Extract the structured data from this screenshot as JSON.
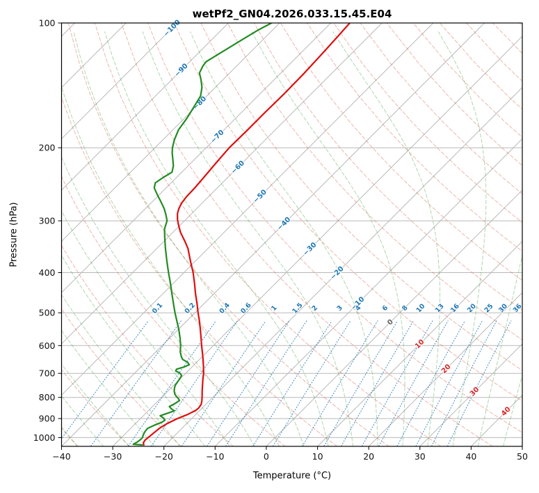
{
  "title": "wetPf2_GN04.2026.033.15.45.E04",
  "chart_data": {
    "type": "skewt-logp-line",
    "title": "wetPf2_GN04.2026.033.15.45.E04",
    "xlabel": "Temperature (°C)",
    "ylabel": "Pressure (hPa)",
    "xlim": [
      -40,
      50
    ],
    "x_ticks": [
      -40,
      -30,
      -20,
      -10,
      0,
      10,
      20,
      30,
      40,
      50
    ],
    "plim": [
      100,
      1050
    ],
    "p_ticks": [
      100,
      200,
      300,
      400,
      500,
      600,
      700,
      800,
      900,
      1000
    ],
    "skew_deg": 45,
    "grid": "on",
    "isotherms": {
      "start": -130,
      "end": 50,
      "step": 10
    },
    "isotherm_labels": [
      {
        "t": -100,
        "p": 103
      },
      {
        "t": -90,
        "p": 130
      },
      {
        "t": -80,
        "p": 156
      },
      {
        "t": -70,
        "p": 188
      },
      {
        "t": -60,
        "p": 223
      },
      {
        "t": -50,
        "p": 262
      },
      {
        "t": -40,
        "p": 305
      },
      {
        "t": -30,
        "p": 351
      },
      {
        "t": -20,
        "p": 401
      },
      {
        "t": -10,
        "p": 475
      },
      {
        "t": 0,
        "p": 527
      },
      {
        "t": 10,
        "p": 595
      },
      {
        "t": 20,
        "p": 683
      },
      {
        "t": 30,
        "p": 775
      },
      {
        "t": 40,
        "p": 865
      }
    ],
    "dry_adiabats_K": {
      "start": 233,
      "end": 473,
      "step": 10
    },
    "moist_adiabats_C": {
      "start": -40,
      "end": 45,
      "step": 5
    },
    "mixing_ratios_g_kg": [
      0.1,
      0.2,
      0.4,
      0.6,
      1,
      1.5,
      2,
      3,
      4,
      6,
      8,
      10,
      13,
      16,
      20,
      25,
      30,
      36
    ],
    "mixing_label_p": 488,
    "colors": {
      "temperature": "#dd0e0e",
      "dewpoint": "#228b22",
      "grid": "#b8b8b8",
      "frame": "#000000",
      "dry_adiabat": "rgba(210,80,58,0.42)",
      "moist_adiabat": "rgba(44,150,44,0.38)",
      "mixing_line": "rgba(31,119,180,0.8)",
      "mixing_label": "#1f77b4",
      "isotherm_label_neg": "#1f77b4",
      "isotherm_label_zero": "#666666",
      "isotherm_label_pos": "#d62728",
      "tick_text": "#111111"
    },
    "series": [
      {
        "name": "temperature",
        "points": [
          [
            1042,
            -24.2
          ],
          [
            1030,
            -24.7
          ],
          [
            1015,
            -24.9
          ],
          [
            1000,
            -24.8
          ],
          [
            975,
            -24.6
          ],
          [
            950,
            -24.4
          ],
          [
            925,
            -23.8
          ],
          [
            900,
            -22.8
          ],
          [
            880,
            -21.6
          ],
          [
            860,
            -20.8
          ],
          [
            848,
            -20.7
          ],
          [
            832,
            -20.9
          ],
          [
            815,
            -21.5
          ],
          [
            800,
            -22.1
          ],
          [
            775,
            -23.2
          ],
          [
            750,
            -24.3
          ],
          [
            725,
            -25.4
          ],
          [
            700,
            -26.5
          ],
          [
            675,
            -27.8
          ],
          [
            650,
            -29.2
          ],
          [
            625,
            -30.7
          ],
          [
            600,
            -32.3
          ],
          [
            575,
            -33.9
          ],
          [
            550,
            -35.6
          ],
          [
            525,
            -37.4
          ],
          [
            500,
            -39.4
          ],
          [
            475,
            -41.4
          ],
          [
            450,
            -43.6
          ],
          [
            425,
            -45.8
          ],
          [
            400,
            -48.2
          ],
          [
            375,
            -51.0
          ],
          [
            350,
            -53.9
          ],
          [
            335,
            -56.1
          ],
          [
            320,
            -58.5
          ],
          [
            308,
            -60.2
          ],
          [
            298,
            -61.6
          ],
          [
            288,
            -62.8
          ],
          [
            280,
            -63.5
          ],
          [
            272,
            -64.0
          ],
          [
            262,
            -64.3
          ],
          [
            250,
            -64.4
          ],
          [
            235,
            -64.7
          ],
          [
            218,
            -65.1
          ],
          [
            200,
            -65.5
          ],
          [
            182,
            -65.4
          ],
          [
            165,
            -65.4
          ],
          [
            148,
            -65.3
          ],
          [
            132,
            -65.4
          ],
          [
            118,
            -65.7
          ],
          [
            108,
            -66.0
          ],
          [
            100,
            -66.3
          ]
        ]
      },
      {
        "name": "dewpoint",
        "points": [
          [
            1042,
            -24.5
          ],
          [
            1038,
            -26.4
          ],
          [
            1028,
            -26.1
          ],
          [
            1012,
            -25.9
          ],
          [
            1000,
            -25.9
          ],
          [
            984,
            -26.3
          ],
          [
            966,
            -26.6
          ],
          [
            950,
            -26.7
          ],
          [
            934,
            -26.0
          ],
          [
            918,
            -25.1
          ],
          [
            908,
            -24.9
          ],
          [
            896,
            -25.7
          ],
          [
            886,
            -26.7
          ],
          [
            874,
            -25.8
          ],
          [
            862,
            -24.9
          ],
          [
            852,
            -25.9
          ],
          [
            842,
            -26.7
          ],
          [
            828,
            -26.2
          ],
          [
            814,
            -25.9
          ],
          [
            804,
            -26.6
          ],
          [
            796,
            -27.3
          ],
          [
            785,
            -28.1
          ],
          [
            772,
            -28.8
          ],
          [
            760,
            -29.3
          ],
          [
            748,
            -29.7
          ],
          [
            735,
            -29.9
          ],
          [
            720,
            -30.1
          ],
          [
            708,
            -30.4
          ],
          [
            698,
            -31.3
          ],
          [
            691,
            -32.4
          ],
          [
            684,
            -32.6
          ],
          [
            675,
            -31.5
          ],
          [
            667,
            -31.0
          ],
          [
            658,
            -31.8
          ],
          [
            648,
            -33.3
          ],
          [
            638,
            -34.1
          ],
          [
            622,
            -35.2
          ],
          [
            600,
            -36.4
          ],
          [
            575,
            -38.0
          ],
          [
            550,
            -39.8
          ],
          [
            525,
            -41.8
          ],
          [
            500,
            -43.9
          ],
          [
            475,
            -46.0
          ],
          [
            450,
            -48.2
          ],
          [
            425,
            -50.5
          ],
          [
            400,
            -53.0
          ],
          [
            375,
            -55.6
          ],
          [
            350,
            -58.3
          ],
          [
            330,
            -60.5
          ],
          [
            314,
            -62.3
          ],
          [
            300,
            -63.4
          ],
          [
            290,
            -64.8
          ],
          [
            280,
            -66.4
          ],
          [
            270,
            -68.3
          ],
          [
            260,
            -70.3
          ],
          [
            250,
            -72.3
          ],
          [
            243,
            -73.1
          ],
          [
            236,
            -72.6
          ],
          [
            229,
            -71.9
          ],
          [
            221,
            -72.9
          ],
          [
            213,
            -74.3
          ],
          [
            206,
            -75.6
          ],
          [
            200,
            -76.6
          ],
          [
            191,
            -77.8
          ],
          [
            181,
            -78.9
          ],
          [
            170,
            -79.5
          ],
          [
            159,
            -80.4
          ],
          [
            150,
            -81.2
          ],
          [
            143,
            -82.6
          ],
          [
            137,
            -84.3
          ],
          [
            132,
            -85.9
          ],
          [
            127,
            -86.6
          ],
          [
            124,
            -86.8
          ],
          [
            117,
            -85.5
          ],
          [
            110,
            -84.1
          ],
          [
            104,
            -82.8
          ],
          [
            100,
            -81.6
          ]
        ]
      }
    ]
  }
}
